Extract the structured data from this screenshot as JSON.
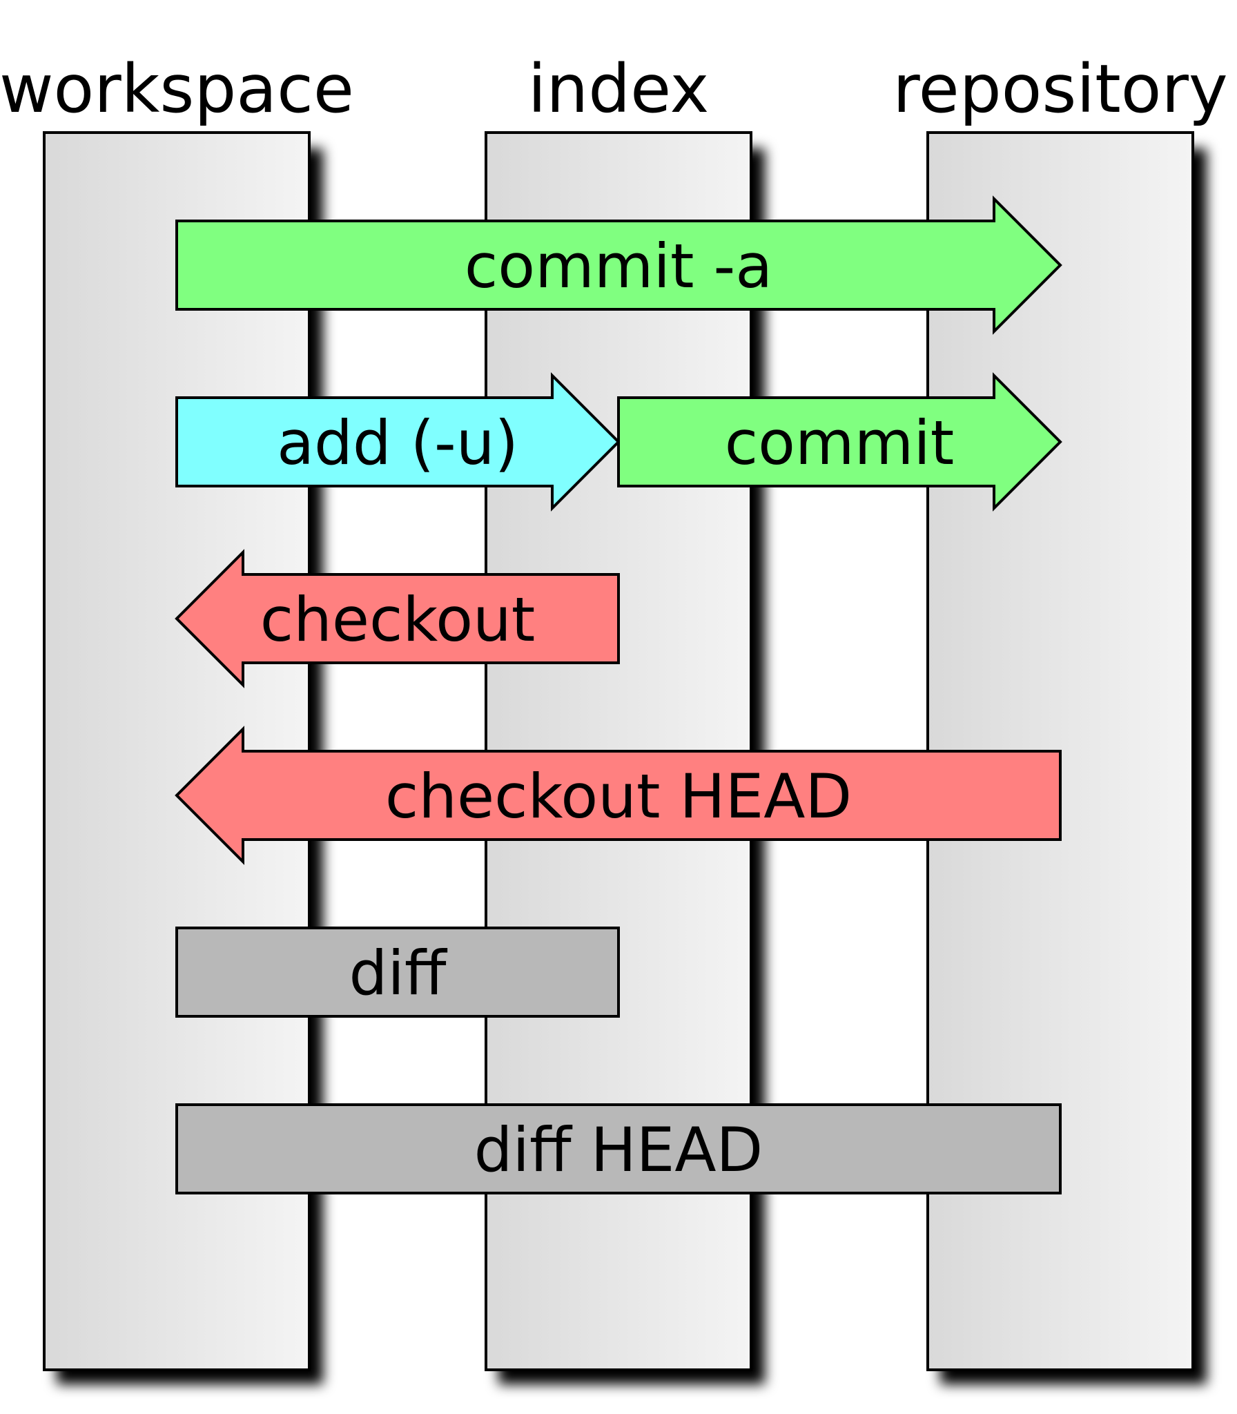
{
  "lanes": [
    {
      "id": "workspace",
      "label": "workspace"
    },
    {
      "id": "index",
      "label": "index"
    },
    {
      "id": "repository",
      "label": "repository"
    }
  ],
  "operations": [
    {
      "id": "commit-a",
      "label": "commit -a",
      "kind": "arrow-right",
      "from": "workspace",
      "to": "repository",
      "color": "#80ff80"
    },
    {
      "id": "add-u",
      "label": "add (-u)",
      "kind": "arrow-right",
      "from": "workspace",
      "to": "index",
      "color": "#80ffff"
    },
    {
      "id": "commit",
      "label": "commit",
      "kind": "arrow-right",
      "from": "index",
      "to": "repository",
      "color": "#80ff80"
    },
    {
      "id": "checkout",
      "label": "checkout",
      "kind": "arrow-left",
      "from": "index",
      "to": "workspace",
      "color": "#ff8080"
    },
    {
      "id": "checkout-head",
      "label": "checkout HEAD",
      "kind": "arrow-left",
      "from": "repository",
      "to": "workspace",
      "color": "#ff8080"
    },
    {
      "id": "diff",
      "label": "diff",
      "kind": "bar",
      "from": "workspace",
      "to": "index",
      "color": "#b8b8b8"
    },
    {
      "id": "diff-head",
      "label": "diff HEAD",
      "kind": "bar",
      "from": "workspace",
      "to": "repository",
      "color": "#b8b8b8"
    }
  ],
  "colors": {
    "lane_fill_light": "#f2f2f2",
    "lane_fill_dark": "#d9d9d9",
    "shadow": "#000000",
    "stroke": "#000000"
  }
}
